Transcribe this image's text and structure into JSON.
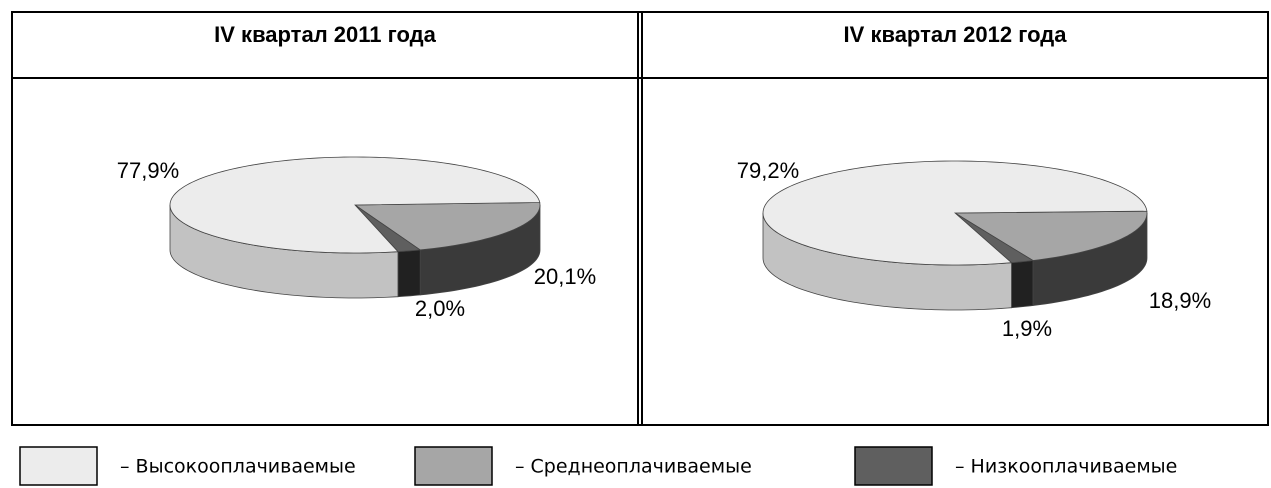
{
  "chart_data": [
    {
      "type": "pie",
      "title": "IV квартал 2011 года",
      "values": [
        77.9,
        20.1,
        2.0
      ],
      "value_labels": [
        "77,9%",
        "20,1%",
        "2,0%"
      ],
      "colors": [
        "#ececec",
        "#a6a6a6",
        "#5f5f5f"
      ]
    },
    {
      "type": "pie",
      "title": "IV квартал 2012 года",
      "values": [
        79.2,
        18.9,
        1.9
      ],
      "value_labels": [
        "79,2%",
        "18,9%",
        "1,9%"
      ],
      "colors": [
        "#ececec",
        "#a6a6a6",
        "#5f5f5f"
      ]
    }
  ],
  "legend": [
    "– Высокооплачиваемые",
    "– Среднеоплачиваемые",
    "– Низкооплачиваемые"
  ]
}
